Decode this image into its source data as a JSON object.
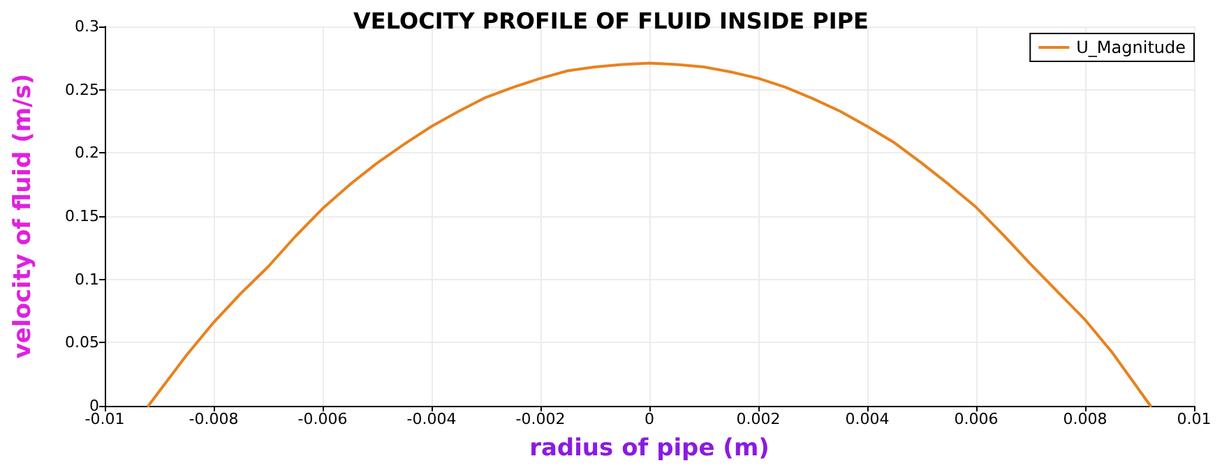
{
  "chart_data": {
    "type": "line",
    "title": "VELOCITY PROFILE OF FLUID INSIDE PIPE",
    "xlabel": "radius of pipe (m)",
    "ylabel": "velocity of fluid (m/s)",
    "x": [
      -0.0092,
      -0.0085,
      -0.008,
      -0.0075,
      -0.007,
      -0.0065,
      -0.006,
      -0.0055,
      -0.005,
      -0.0045,
      -0.004,
      -0.0035,
      -0.003,
      -0.0025,
      -0.002,
      -0.0015,
      -0.001,
      -0.0005,
      0,
      0.0005,
      0.001,
      0.0015,
      0.002,
      0.0025,
      0.003,
      0.0035,
      0.004,
      0.0045,
      0.005,
      0.0055,
      0.006,
      0.0065,
      0.007,
      0.0075,
      0.008,
      0.0085,
      0.0092
    ],
    "series": [
      {
        "name": "U_Magnitude",
        "color": "#e8821e",
        "values": [
          0,
          0.04,
          0.066,
          0.089,
          0.11,
          0.134,
          0.156,
          0.175,
          0.192,
          0.207,
          0.221,
          0.233,
          0.244,
          0.252,
          0.259,
          0.265,
          0.268,
          0.27,
          0.271,
          0.27,
          0.268,
          0.264,
          0.259,
          0.252,
          0.243,
          0.233,
          0.221,
          0.208,
          0.192,
          0.175,
          0.157,
          0.135,
          0.112,
          0.09,
          0.068,
          0.042,
          0
        ]
      }
    ],
    "xlim": [
      -0.01,
      0.01
    ],
    "xticks": [
      -0.01,
      -0.008,
      -0.006,
      -0.004,
      -0.002,
      0,
      0.002,
      0.004,
      0.006,
      0.008,
      0.01
    ],
    "ylim": [
      0,
      0.3
    ],
    "yticks": [
      0,
      0.05,
      0.1,
      0.15,
      0.2,
      0.25,
      0.3
    ],
    "grid": true,
    "legend": "top right",
    "marker": "none",
    "line_style": "solid"
  }
}
